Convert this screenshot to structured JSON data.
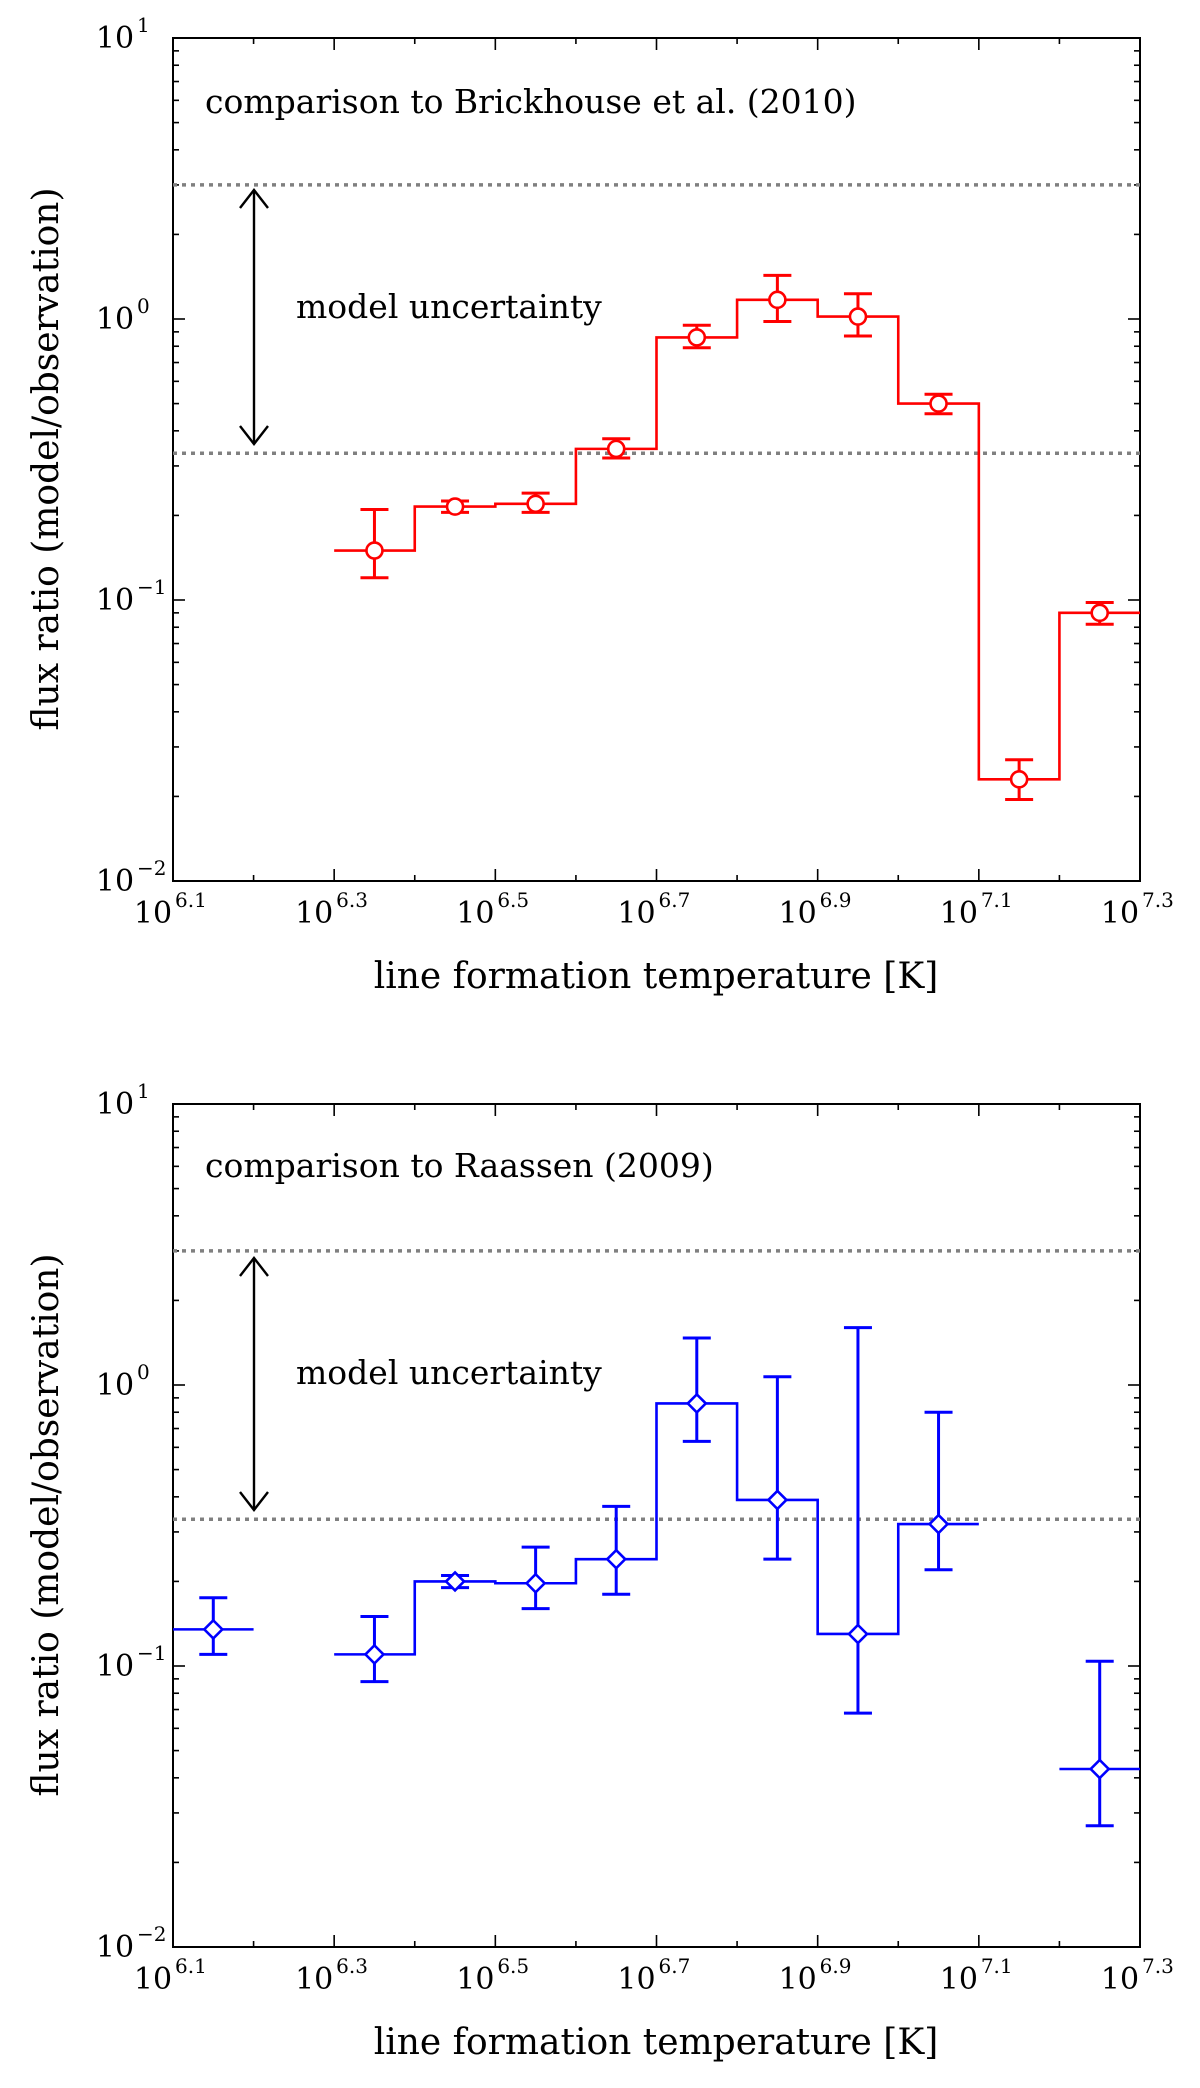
{
  "chart_data": [
    {
      "type": "line",
      "subtype": "step-with-errorbars",
      "annotation": "comparison to Brickhouse et al. (2010)",
      "uncertainty_label": "model uncertainty",
      "xlabel": "line formation temperature [K]",
      "ylabel": "flux ratio (model/observation)",
      "xscale": "log10",
      "yscale": "log",
      "xlim_log10": [
        6.1,
        7.3
      ],
      "ylim": [
        0.01,
        10
      ],
      "reference_lines": [
        3.0,
        0.333
      ],
      "color": "#ff0000",
      "marker": "circle",
      "x_log10": [
        6.35,
        6.45,
        6.55,
        6.65,
        6.75,
        6.85,
        6.95,
        7.05,
        7.15,
        7.25
      ],
      "bin_edges_log10": [
        6.3,
        6.4,
        6.5,
        6.6,
        6.7,
        6.8,
        6.9,
        7.0,
        7.1,
        7.2,
        7.3
      ],
      "y": [
        0.15,
        0.215,
        0.22,
        0.345,
        0.86,
        1.17,
        1.02,
        0.5,
        0.023,
        0.09
      ],
      "y_low": [
        0.12,
        0.205,
        0.205,
        0.32,
        0.79,
        0.98,
        0.87,
        0.46,
        0.0195,
        0.082
      ],
      "y_high": [
        0.21,
        0.225,
        0.24,
        0.375,
        0.95,
        1.43,
        1.23,
        0.54,
        0.027,
        0.098
      ],
      "x_tick_base": "10",
      "x_tick_exponents": [
        "6.1",
        "6.3",
        "6.5",
        "6.7",
        "6.9",
        "7.1",
        "7.3"
      ],
      "y_tick_base": "10",
      "y_tick_exponents": [
        "1",
        "0",
        "−1",
        "−2"
      ]
    },
    {
      "type": "line",
      "subtype": "step-with-errorbars",
      "annotation": "comparison to Raassen (2009)",
      "uncertainty_label": "model uncertainty",
      "xlabel": "line formation temperature [K]",
      "ylabel": "flux ratio (model/observation)",
      "xscale": "log10",
      "yscale": "log",
      "xlim_log10": [
        6.1,
        7.3
      ],
      "ylim": [
        0.01,
        10
      ],
      "reference_lines": [
        3.0,
        0.333
      ],
      "color": "#0000ff",
      "marker": "diamond",
      "x_log10": [
        6.15,
        6.35,
        6.45,
        6.55,
        6.65,
        6.75,
        6.85,
        6.95,
        7.05,
        7.25
      ],
      "bin_edges_log10": [
        6.1,
        6.2,
        6.3,
        6.4,
        6.5,
        6.6,
        6.7,
        6.8,
        6.9,
        7.0,
        7.1,
        7.2,
        7.3
      ],
      "step_segments": [
        [
          6.3,
          6.4
        ],
        [
          6.4,
          6.5
        ],
        [
          6.5,
          6.6
        ],
        [
          6.6,
          6.7
        ],
        [
          6.7,
          6.8
        ],
        [
          6.8,
          6.9
        ],
        [
          6.9,
          7.0
        ],
        [
          7.0,
          7.1
        ]
      ],
      "y": [
        0.135,
        0.11,
        0.2,
        0.197,
        0.24,
        0.86,
        0.39,
        0.13,
        0.32,
        0.043
      ],
      "y_low": [
        0.11,
        0.088,
        0.19,
        0.16,
        0.18,
        0.63,
        0.24,
        0.068,
        0.22,
        0.027
      ],
      "y_high": [
        0.175,
        0.15,
        0.21,
        0.265,
        0.37,
        1.47,
        1.07,
        1.6,
        0.8,
        0.104
      ],
      "x_tick_base": "10",
      "x_tick_exponents": [
        "6.1",
        "6.3",
        "6.5",
        "6.7",
        "6.9",
        "7.1",
        "7.3"
      ],
      "y_tick_base": "10",
      "y_tick_exponents": [
        "1",
        "0",
        "−1",
        "−2"
      ]
    }
  ]
}
